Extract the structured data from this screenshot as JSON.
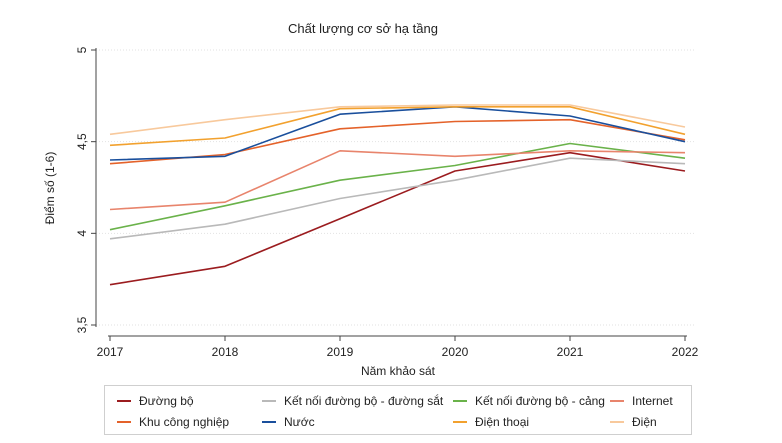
{
  "chart_data": {
    "type": "line",
    "title": "Chất lượng cơ sở hạ tầng",
    "xlabel": "Năm khảo sát",
    "ylabel": "Điểm số (1-6)",
    "x": [
      2017,
      2018,
      2019,
      2020,
      2021,
      2022
    ],
    "x_tick_labels": [
      "2017",
      "2018",
      "2019",
      "2020",
      "2021",
      "2022"
    ],
    "y_ticks": [
      3.5,
      4,
      4.5,
      5
    ],
    "y_tick_labels": [
      "3,5",
      "4",
      "4,5",
      "5"
    ],
    "ylim": [
      3.5,
      5
    ],
    "grid": "horizontal dotted",
    "legend_position": "bottom",
    "series": [
      {
        "name": "Đường bộ",
        "color": "#9b1c1f",
        "values": [
          3.72,
          3.82,
          4.08,
          4.34,
          4.44,
          4.34
        ]
      },
      {
        "name": "Kết nối đường bộ - đường sắt",
        "color": "#b9b9b9",
        "values": [
          3.97,
          4.05,
          4.19,
          4.29,
          4.41,
          4.38
        ]
      },
      {
        "name": "Kết nối đường bộ - cảng",
        "color": "#6ab24a",
        "values": [
          4.02,
          4.15,
          4.29,
          4.37,
          4.49,
          4.41
        ]
      },
      {
        "name": "Internet",
        "color": "#e8846c",
        "values": [
          4.13,
          4.17,
          4.45,
          4.42,
          4.45,
          4.44
        ]
      },
      {
        "name": "Khu công nghiệp",
        "color": "#e4622a",
        "values": [
          4.38,
          4.43,
          4.57,
          4.61,
          4.62,
          4.51
        ]
      },
      {
        "name": "Nước",
        "color": "#1a4f9c",
        "values": [
          4.4,
          4.42,
          4.65,
          4.69,
          4.64,
          4.5
        ]
      },
      {
        "name": "Điện thoại",
        "color": "#f2a12e",
        "values": [
          4.48,
          4.52,
          4.68,
          4.69,
          4.69,
          4.54
        ]
      },
      {
        "name": "Điện",
        "color": "#f8c99c",
        "values": [
          4.54,
          4.62,
          4.69,
          4.7,
          4.7,
          4.58
        ]
      }
    ]
  }
}
